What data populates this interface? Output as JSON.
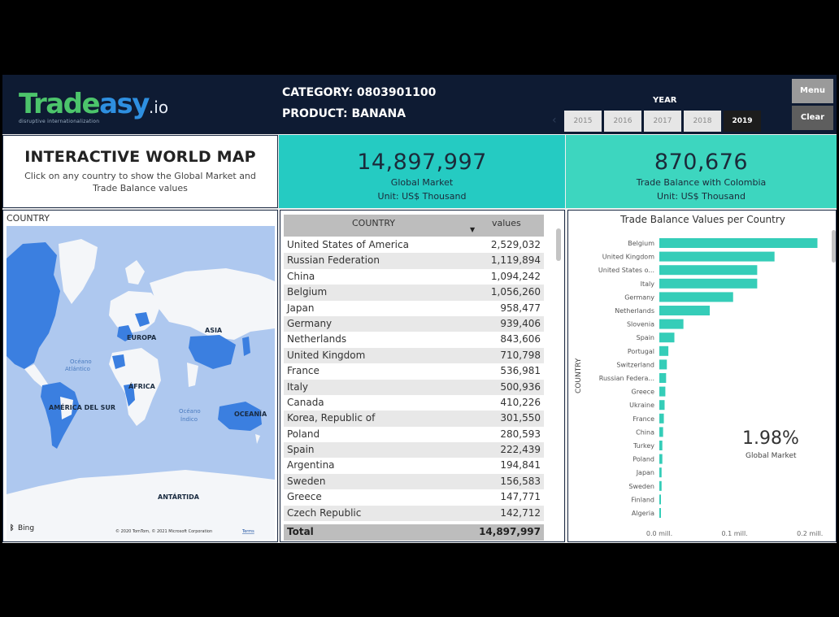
{
  "header": {
    "logo_main_green": "Trade",
    "logo_main_blue": "asy",
    "logo_io": ".io",
    "logo_tagline": "disruptive internationalization",
    "category_line": "CATEGORY: 0803901100",
    "product_line": "PRODUCT:  BANANA",
    "year_label": "YEAR",
    "years": [
      "2015",
      "2016",
      "2017",
      "2018",
      "2019"
    ],
    "selected_year": "2019",
    "menu_label": "Menu",
    "clear_label": "Clear"
  },
  "title_card": {
    "title": "INTERACTIVE WORLD MAP",
    "subtitle": "Click on any country to show the Global Market and Trade Balance values"
  },
  "kpis": [
    {
      "value": "14,897,997",
      "label": "Global Market",
      "unit": "Unit: US$ Thousand"
    },
    {
      "value": "870,676",
      "label": "Trade Balance with Colombia",
      "unit": "Unit: US$ Thousand"
    }
  ],
  "map": {
    "heading": "COUNTRY",
    "labels": {
      "europe": "EUROPA",
      "asia": "ASIA",
      "africa": "ÁFRICA",
      "south_america": "AMÉRICA DEL SUR",
      "oceania": "OCEANÍA",
      "antarctica": "ANTÁRTIDA",
      "atlantic_1": "Océano",
      "atlantic_2": "Atlántico",
      "indian_1": "Océano",
      "indian_2": "Índico"
    },
    "bing": "Bing",
    "copyright": "© 2020 TomTom, © 2021 Microsoft Corporation",
    "terms": "Terms",
    "colors": {
      "water": "#aec8ef",
      "land": "#f4f6f9",
      "highlight": "#3b7fe0"
    }
  },
  "table": {
    "col_country": "COUNTRY",
    "col_values": "values",
    "rows": [
      {
        "country": "United States of America",
        "value": "2,529,032"
      },
      {
        "country": "Russian Federation",
        "value": "1,119,894"
      },
      {
        "country": "China",
        "value": "1,094,242"
      },
      {
        "country": "Belgium",
        "value": "1,056,260"
      },
      {
        "country": "Japan",
        "value": "958,477"
      },
      {
        "country": "Germany",
        "value": "939,406"
      },
      {
        "country": "Netherlands",
        "value": "843,606"
      },
      {
        "country": "United Kingdom",
        "value": "710,798"
      },
      {
        "country": "France",
        "value": "536,981"
      },
      {
        "country": "Italy",
        "value": "500,936"
      },
      {
        "country": "Canada",
        "value": "410,226"
      },
      {
        "country": "Korea, Republic of",
        "value": "301,550"
      },
      {
        "country": "Poland",
        "value": "280,593"
      },
      {
        "country": "Spain",
        "value": "222,439"
      },
      {
        "country": "Argentina",
        "value": "194,841"
      },
      {
        "country": "Sweden",
        "value": "156,583"
      },
      {
        "country": "Greece",
        "value": "147,771"
      },
      {
        "country": "Czech Republic",
        "value": "142,712"
      }
    ],
    "total_label": "Total",
    "total_value": "14,897,997"
  },
  "chart_data": {
    "type": "bar",
    "orientation": "horizontal",
    "title": "Trade Balance Values per Country",
    "ylabel": "COUNTRY",
    "xlabel": "",
    "categories": [
      "Belgium",
      "United Kingdom",
      "United States o...",
      "Italy",
      "Germany",
      "Netherlands",
      "Slovenia",
      "Spain",
      "Portugal",
      "Switzerland",
      "Russian Federa...",
      "Greece",
      "Ukraine",
      "France",
      "China",
      "Turkey",
      "Poland",
      "Japan",
      "Sweden",
      "Finland",
      "Algeria"
    ],
    "values": [
      0.21,
      0.153,
      0.13,
      0.13,
      0.098,
      0.067,
      0.032,
      0.02,
      0.012,
      0.01,
      0.009,
      0.008,
      0.007,
      0.006,
      0.005,
      0.004,
      0.004,
      0.003,
      0.003,
      0.002,
      0.002
    ],
    "xlim": [
      0,
      0.23
    ],
    "x_ticks": [
      0,
      0.1,
      0.2
    ],
    "x_tick_labels": [
      "0.0 mill.",
      "0.1 mill.",
      "0.2 mill."
    ],
    "bar_color": "#35cdb8",
    "annotation_value": "1.98%",
    "annotation_label": "Global Market"
  }
}
